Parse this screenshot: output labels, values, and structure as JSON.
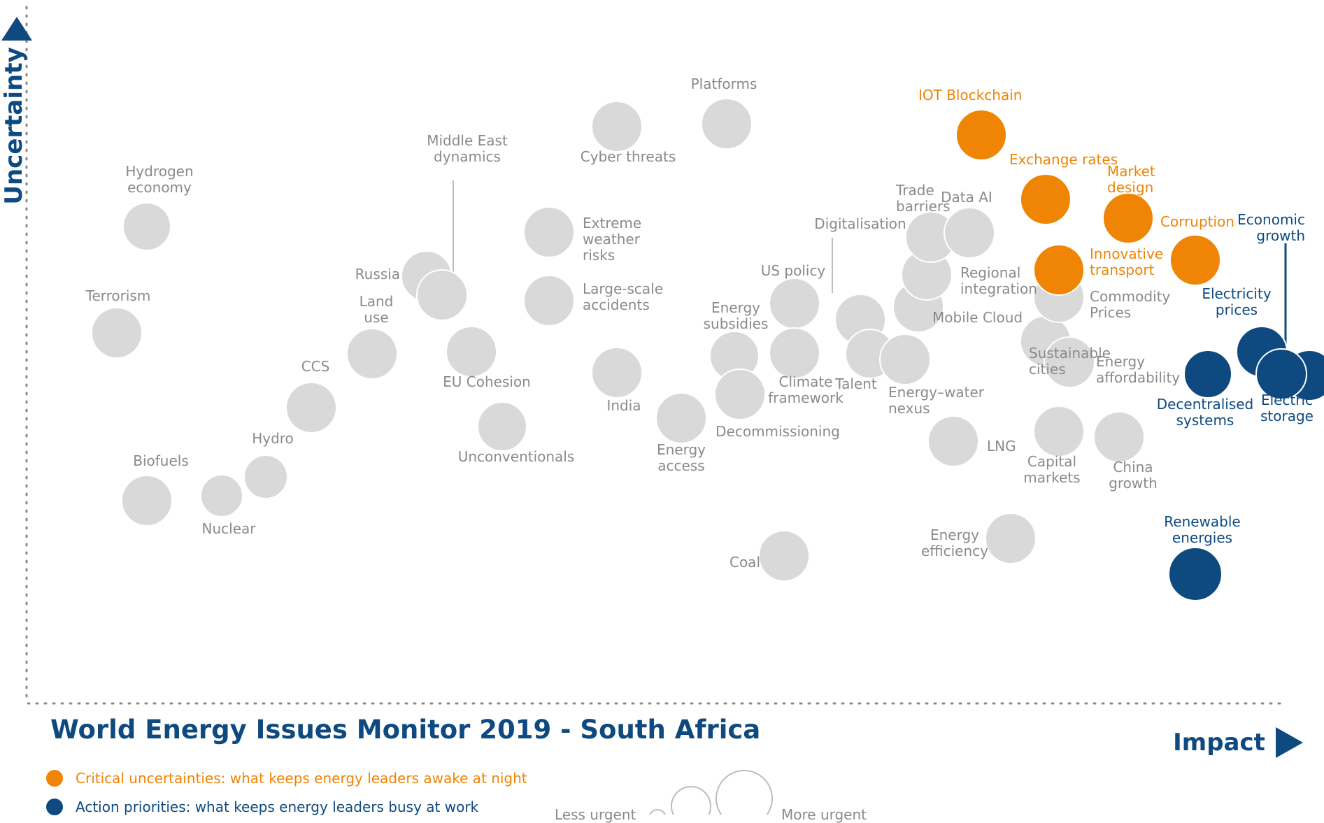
{
  "title": "World Energy Issues Monitor 2019 - South Africa",
  "colors": {
    "critical": "#ef8405",
    "priority": "#0e4a80",
    "neutral": "#d9d9d9",
    "neutral_text": "#8a8a8a"
  },
  "legend": {
    "critical": "Critical uncertainties: what keeps energy leaders awake at night",
    "priority": "Action priorities: what keeps energy leaders busy at work",
    "less_urgent": "Less urgent",
    "more_urgent": "More urgent"
  },
  "chart_data": {
    "type": "scatter",
    "title": "World Energy Issues Monitor 2019 - South Africa",
    "xlabel": "Impact",
    "ylabel": "Uncertainty",
    "xlim": [
      0,
      1860
    ],
    "ylim": [
      0,
      1000
    ],
    "grid": false,
    "points": [
      {
        "name": "Hydrogen economy",
        "x": 170,
        "y": 676,
        "size": 34,
        "group": "neutral",
        "label": [
          "Hydrogen",
          "economy"
        ]
      },
      {
        "name": "Terrorism",
        "x": 127,
        "y": 524,
        "size": 36,
        "group": "neutral",
        "label": [
          "Terrorism"
        ]
      },
      {
        "name": "Biofuels",
        "x": 170,
        "y": 284,
        "size": 36,
        "group": "neutral",
        "label": [
          "Biofuels"
        ]
      },
      {
        "name": "Nuclear",
        "x": 277,
        "y": 291,
        "size": 30,
        "group": "neutral",
        "label": [
          "Nuclear"
        ]
      },
      {
        "name": "Hydro",
        "x": 340,
        "y": 318,
        "size": 31,
        "group": "neutral",
        "label": [
          "Hydro"
        ]
      },
      {
        "name": "CCS",
        "x": 405,
        "y": 417,
        "size": 36,
        "group": "neutral",
        "label": [
          "CCS"
        ]
      },
      {
        "name": "Land use",
        "x": 492,
        "y": 494,
        "size": 36,
        "group": "neutral",
        "label": [
          "Land",
          "use"
        ]
      },
      {
        "name": "Russia",
        "x": 570,
        "y": 605,
        "size": 36,
        "group": "neutral",
        "label": [
          "Russia"
        ]
      },
      {
        "name": "Middle East dynamics",
        "x": 592,
        "y": 578,
        "size": 36,
        "group": "neutral",
        "label": [
          "Middle East",
          "dynamics"
        ]
      },
      {
        "name": "EU Cohesion",
        "x": 634,
        "y": 497,
        "size": 36,
        "group": "neutral",
        "label": [
          "EU Cohesion"
        ]
      },
      {
        "name": "Unconventionals",
        "x": 678,
        "y": 390,
        "size": 35,
        "group": "neutral",
        "label": [
          "Unconventionals"
        ]
      },
      {
        "name": "Extreme weather risks",
        "x": 745,
        "y": 668,
        "size": 36,
        "group": "neutral",
        "label": [
          "Extreme",
          "weather",
          "risks"
        ]
      },
      {
        "name": "Large-scale accidents",
        "x": 745,
        "y": 570,
        "size": 36,
        "group": "neutral",
        "label": [
          "Large-scale",
          "accidents"
        ]
      },
      {
        "name": "Cyber threats",
        "x": 842,
        "y": 819,
        "size": 36,
        "group": "neutral",
        "label": [
          "Cyber threats"
        ]
      },
      {
        "name": "Platforms",
        "x": 999,
        "y": 823,
        "size": 36,
        "group": "neutral",
        "label": [
          "Platforms"
        ]
      },
      {
        "name": "India",
        "x": 842,
        "y": 467,
        "size": 36,
        "group": "neutral",
        "label": [
          "India"
        ]
      },
      {
        "name": "Energy access",
        "x": 934,
        "y": 402,
        "size": 36,
        "group": "neutral",
        "label": [
          "Energy",
          "access"
        ]
      },
      {
        "name": "Energy subsidies",
        "x": 1010,
        "y": 491,
        "size": 35,
        "group": "neutral",
        "label": [
          "Energy",
          "subsidies"
        ]
      },
      {
        "name": "Decommissioning",
        "x": 1018,
        "y": 436,
        "size": 36,
        "group": "neutral",
        "label": [
          "Decommissioning"
        ]
      },
      {
        "name": "US policy",
        "x": 1096,
        "y": 566,
        "size": 36,
        "group": "neutral",
        "label": [
          "US policy"
        ]
      },
      {
        "name": "Climate framework",
        "x": 1096,
        "y": 495,
        "size": 36,
        "group": "neutral",
        "label": [
          "Climate",
          "framework"
        ]
      },
      {
        "name": "Coal",
        "x": 1081,
        "y": 205,
        "size": 36,
        "group": "neutral",
        "label": [
          "Coal"
        ]
      },
      {
        "name": "Digitalisation",
        "x": 1190,
        "y": 543,
        "size": 36,
        "group": "neutral",
        "label": [
          "Digitalisation"
        ]
      },
      {
        "name": "Talent",
        "x": 1204,
        "y": 494,
        "size": 35,
        "group": "neutral",
        "label": [
          "Talent"
        ]
      },
      {
        "name": "Energy-water nexus",
        "x": 1254,
        "y": 486,
        "size": 36,
        "group": "neutral",
        "label": [
          "Energy–water",
          "nexus"
        ]
      },
      {
        "name": "Mobile Cloud",
        "x": 1273,
        "y": 561,
        "size": 36,
        "group": "neutral",
        "label": [
          "Mobile Cloud"
        ]
      },
      {
        "name": "Regional integration",
        "x": 1285,
        "y": 607,
        "size": 36,
        "group": "neutral",
        "label": [
          "Regional",
          "integration"
        ]
      },
      {
        "name": "Trade barriers",
        "x": 1291,
        "y": 661,
        "size": 36,
        "group": "neutral",
        "label": [
          "Trade",
          "barriers"
        ]
      },
      {
        "name": "Data AI",
        "x": 1346,
        "y": 667,
        "size": 36,
        "group": "neutral",
        "label": [
          "Data AI"
        ]
      },
      {
        "name": "LNG",
        "x": 1323,
        "y": 369,
        "size": 36,
        "group": "neutral",
        "label": [
          "LNG"
        ]
      },
      {
        "name": "Energy efficiency",
        "x": 1405,
        "y": 230,
        "size": 36,
        "group": "neutral",
        "label": [
          "Energy",
          "efficiency"
        ]
      },
      {
        "name": "Sustainable cities",
        "x": 1455,
        "y": 512,
        "size": 36,
        "group": "neutral",
        "label": [
          "Sustainable",
          "cities"
        ]
      },
      {
        "name": "Commodity Prices",
        "x": 1474,
        "y": 575,
        "size": 36,
        "group": "neutral",
        "label": [
          "Commodity",
          "Prices"
        ]
      },
      {
        "name": "Energy affordability",
        "x": 1489,
        "y": 482,
        "size": 36,
        "group": "neutral",
        "label": [
          "Energy",
          "affordability"
        ]
      },
      {
        "name": "Capital markets",
        "x": 1474,
        "y": 383,
        "size": 36,
        "group": "neutral",
        "label": [
          "Capital",
          "markets"
        ]
      },
      {
        "name": "China growth",
        "x": 1560,
        "y": 375,
        "size": 36,
        "group": "neutral",
        "label": [
          "China",
          "growth"
        ]
      },
      {
        "name": "IOT Blockchain",
        "x": 1363,
        "y": 807,
        "size": 36,
        "group": "critical",
        "label": [
          "IOT Blockchain"
        ]
      },
      {
        "name": "Exchange rates",
        "x": 1455,
        "y": 715,
        "size": 36,
        "group": "critical",
        "label": [
          "Exchange rates"
        ]
      },
      {
        "name": "Market design",
        "x": 1573,
        "y": 688,
        "size": 36,
        "group": "critical",
        "label": [
          "Market",
          "design"
        ]
      },
      {
        "name": "Corruption",
        "x": 1669,
        "y": 628,
        "size": 36,
        "group": "critical",
        "label": [
          "Corruption"
        ]
      },
      {
        "name": "Innovative transport",
        "x": 1474,
        "y": 614,
        "size": 36,
        "group": "critical",
        "label": [
          "Innovative",
          "transport"
        ]
      },
      {
        "name": "Economic growth",
        "x": 1832,
        "y": 463,
        "size": 36,
        "group": "priority",
        "label": [
          "Economic",
          "growth"
        ]
      },
      {
        "name": "Electricity prices",
        "x": 1764,
        "y": 497,
        "size": 36,
        "group": "priority",
        "label": [
          "Electricity",
          "prices"
        ]
      },
      {
        "name": "Electric storage",
        "x": 1792,
        "y": 465,
        "size": 36,
        "group": "priority",
        "label": [
          "Electric",
          "storage"
        ]
      },
      {
        "name": "Decentralised systems",
        "x": 1687,
        "y": 465,
        "size": 34,
        "group": "priority",
        "label": [
          "Decentralised",
          "systems"
        ]
      },
      {
        "name": "Renewable energies",
        "x": 1669,
        "y": 179,
        "size": 38,
        "group": "priority",
        "label": [
          "Renewable",
          "energies"
        ]
      }
    ]
  }
}
